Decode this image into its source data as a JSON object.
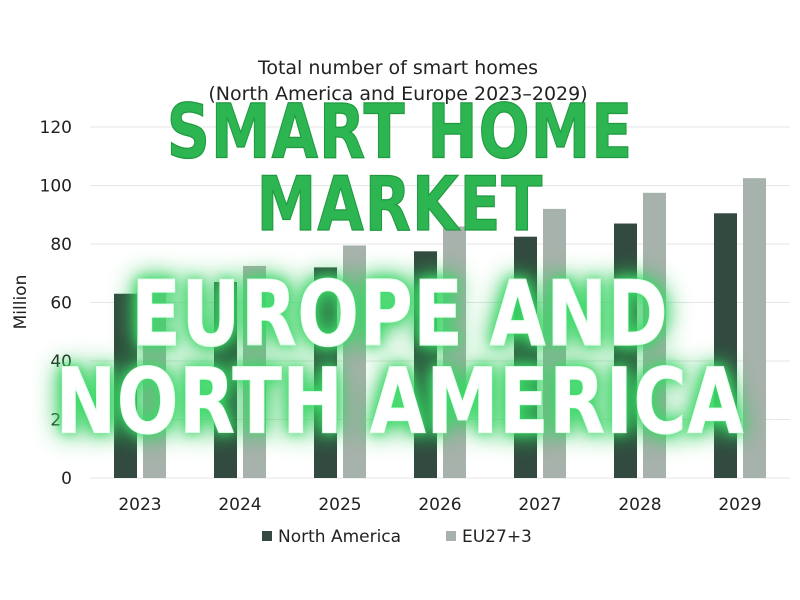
{
  "overlay": {
    "heading_lines": [
      "SMART HOME",
      "MARKET"
    ],
    "subheading_lines": [
      "EUROPE AND",
      "NORTH AMERICA"
    ],
    "heading_color": "#2db552",
    "subheading_glow_color": "#3ddc6a"
  },
  "chart_data": {
    "type": "bar",
    "title": "Total number of smart homes",
    "subtitle": "(North America and Europe 2023–2029)",
    "xlabel": "",
    "ylabel": "Million",
    "categories": [
      "2023",
      "2024",
      "2025",
      "2026",
      "2027",
      "2028",
      "2029"
    ],
    "ylim": [
      0,
      120
    ],
    "yticks": [
      0,
      20,
      40,
      60,
      80,
      100,
      120
    ],
    "grid": true,
    "legend_position": "bottom",
    "series": [
      {
        "name": "North America",
        "color": "#334a40",
        "values": [
          63,
          67,
          72,
          77.5,
          82.5,
          87,
          90.5
        ]
      },
      {
        "name": "EU27+3",
        "color": "#a8b2ac",
        "values": [
          67,
          72.5,
          79.5,
          86,
          92,
          97.5,
          102.5
        ]
      }
    ]
  }
}
